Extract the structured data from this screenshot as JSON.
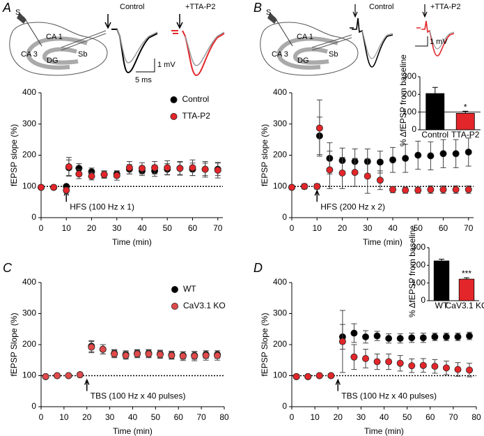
{
  "panel_labels": [
    "A",
    "B",
    "C",
    "D"
  ],
  "schematics": [
    {
      "labels": [
        "S",
        "CA 1",
        "CA 3",
        "DG",
        "Sb"
      ],
      "traces": [
        "Control",
        "+TTA-P2"
      ],
      "scale_bar": [
        "1 mV",
        "5 ms"
      ]
    },
    {
      "labels": [
        "S",
        "CA 1",
        "CA 3",
        "DG",
        "Sb"
      ],
      "traces": [
        "Control",
        "+TTA-P2"
      ],
      "scale_bar": [
        "1 mV"
      ]
    }
  ],
  "chart_data": [
    {
      "type": "scatter",
      "x_label": "Time (min)",
      "y_label": "fEPSP slope (%)",
      "x": [
        0,
        5,
        10,
        11,
        15,
        20,
        25,
        30,
        35,
        40,
        45,
        50,
        55,
        60,
        65,
        70
      ],
      "xlim": [
        0,
        72
      ],
      "xticks": [
        0,
        10,
        20,
        30,
        40,
        50,
        60,
        70
      ],
      "ylim": [
        0,
        400
      ],
      "yticks": [
        0,
        100,
        200,
        300,
        400
      ],
      "reference_line": 100,
      "legend": "upper right",
      "annotation": {
        "text": "HFS (100 Hz x 1)",
        "x": 10
      },
      "series": [
        {
          "name": "Control",
          "color": "#000000",
          "values": [
            97,
            97,
            100,
            160,
            158,
            147,
            138,
            140,
            155,
            150,
            150,
            155,
            158,
            155,
            155,
            155
          ],
          "errors": [
            5,
            5,
            5,
            25,
            15,
            12,
            10,
            10,
            15,
            15,
            18,
            18,
            20,
            20,
            20,
            20
          ]
        },
        {
          "name": "TTA-P2",
          "color": "#e3262a",
          "values": [
            97,
            97,
            88,
            163,
            140,
            133,
            138,
            135,
            160,
            158,
            160,
            160,
            158,
            160,
            155,
            152
          ],
          "errors": [
            5,
            5,
            8,
            30,
            15,
            12,
            12,
            15,
            20,
            18,
            20,
            22,
            22,
            25,
            25,
            25
          ]
        }
      ]
    },
    {
      "type": "scatter",
      "x_label": "Time (min)",
      "y_label": "fEPSP slope (%)",
      "x": [
        0,
        5,
        10,
        11,
        15,
        20,
        25,
        30,
        35,
        40,
        45,
        50,
        55,
        60,
        65,
        70
      ],
      "xlim": [
        0,
        72
      ],
      "xticks": [
        0,
        10,
        20,
        30,
        40,
        50,
        60,
        70
      ],
      "ylim": [
        0,
        400
      ],
      "yticks": [
        0,
        100,
        200,
        300,
        400
      ],
      "reference_line": 100,
      "annotation": {
        "text": "HFS (200 Hz x 2)",
        "x": 10
      },
      "series": [
        {
          "name": "Control",
          "color": "#000000",
          "values": [
            97,
            100,
            100,
            262,
            190,
            183,
            180,
            180,
            178,
            185,
            190,
            200,
            198,
            205,
            205,
            210
          ],
          "errors": [
            5,
            8,
            8,
            60,
            50,
            40,
            40,
            40,
            35,
            40,
            45,
            45,
            45,
            45,
            45,
            45
          ]
        },
        {
          "name": "TTA-P2",
          "color": "#e3262a",
          "values": [
            97,
            100,
            100,
            287,
            153,
            143,
            145,
            133,
            120,
            90,
            88,
            88,
            90,
            90,
            90,
            90
          ],
          "errors": [
            5,
            8,
            8,
            90,
            60,
            50,
            45,
            55,
            30,
            10,
            10,
            10,
            12,
            12,
            12,
            12
          ]
        }
      ]
    },
    {
      "type": "bar",
      "y_label": "% ΔfEPSP from baseline",
      "categories": [
        "Control",
        "TTA-P2"
      ],
      "values": [
        205,
        93
      ],
      "errors": [
        35,
        12
      ],
      "colors": [
        "#000000",
        "#e3262a"
      ],
      "ylim": [
        0,
        300
      ],
      "yticks": [
        0,
        100,
        200,
        300
      ],
      "reference_line": 100,
      "significance": {
        "index": 1,
        "text": "*"
      }
    },
    {
      "type": "scatter",
      "x_label": "Time (min)",
      "y_label": "fEPSP Slope (%)",
      "x": [
        2,
        7,
        12,
        17,
        22,
        27,
        32,
        37,
        42,
        47,
        52,
        57,
        62,
        67,
        72,
        77
      ],
      "xlim": [
        0,
        80
      ],
      "xticks": [
        0,
        10,
        20,
        30,
        40,
        50,
        60,
        70,
        80
      ],
      "ylim": [
        0,
        400
      ],
      "yticks": [
        0,
        100,
        200,
        300,
        400
      ],
      "reference_line": 100,
      "legend": "upper right",
      "annotation": {
        "text": "TBS (100 Hz x 40 pulses)",
        "x": 20
      },
      "series": [
        {
          "name": "WT",
          "color": "#000000",
          "values": [
            97,
            100,
            100,
            103,
            195,
            185,
            172,
            168,
            172,
            172,
            170,
            167,
            165,
            165,
            168,
            168
          ],
          "errors": [
            5,
            5,
            5,
            5,
            18,
            15,
            12,
            12,
            12,
            12,
            12,
            12,
            12,
            12,
            12,
            12
          ]
        },
        {
          "name": "CaV3.1 KO",
          "color": "#e04a4a",
          "values": [
            97,
            100,
            100,
            103,
            192,
            185,
            170,
            165,
            170,
            170,
            168,
            165,
            163,
            163,
            165,
            165
          ],
          "errors": [
            5,
            5,
            5,
            5,
            18,
            15,
            12,
            12,
            12,
            12,
            12,
            12,
            14,
            15,
            15,
            15
          ]
        }
      ]
    },
    {
      "type": "scatter",
      "x_label": "Time (min)",
      "y_label": "fEPSP Slope (%)",
      "x": [
        2,
        7,
        12,
        17,
        22,
        27,
        32,
        37,
        42,
        47,
        52,
        57,
        62,
        67,
        72,
        77
      ],
      "xlim": [
        0,
        80
      ],
      "xticks": [
        0,
        10,
        20,
        30,
        40,
        50,
        60,
        70,
        80
      ],
      "ylim": [
        0,
        400
      ],
      "yticks": [
        0,
        100,
        200,
        300,
        400
      ],
      "reference_line": 100,
      "annotation": {
        "text": "TBS (100 Hz x 40 pulses)",
        "x": 20
      },
      "series": [
        {
          "name": "WT",
          "color": "#000000",
          "values": [
            97,
            97,
            100,
            100,
            225,
            237,
            225,
            228,
            220,
            220,
            222,
            222,
            225,
            225,
            225,
            228
          ],
          "errors": [
            5,
            5,
            5,
            5,
            40,
            30,
            20,
            15,
            15,
            15,
            15,
            15,
            12,
            12,
            12,
            12
          ]
        },
        {
          "name": "CaV3.1 KO",
          "color": "#e3262a",
          "values": [
            97,
            97,
            100,
            100,
            210,
            160,
            155,
            145,
            145,
            140,
            132,
            133,
            130,
            125,
            120,
            118
          ],
          "errors": [
            5,
            5,
            5,
            5,
            100,
            40,
            30,
            25,
            25,
            25,
            22,
            22,
            22,
            22,
            22,
            22
          ]
        }
      ]
    },
    {
      "type": "bar",
      "y_label": "% ΔfEPSP from baseline",
      "categories": [
        "WT",
        "CaV3.1 KO"
      ],
      "values": [
        225,
        122
      ],
      "errors": [
        10,
        8
      ],
      "colors": [
        "#000000",
        "#e3262a"
      ],
      "ylim": [
        0,
        300
      ],
      "yticks": [
        0,
        100,
        200,
        300
      ],
      "significance": {
        "index": 1,
        "text": "***"
      }
    }
  ]
}
